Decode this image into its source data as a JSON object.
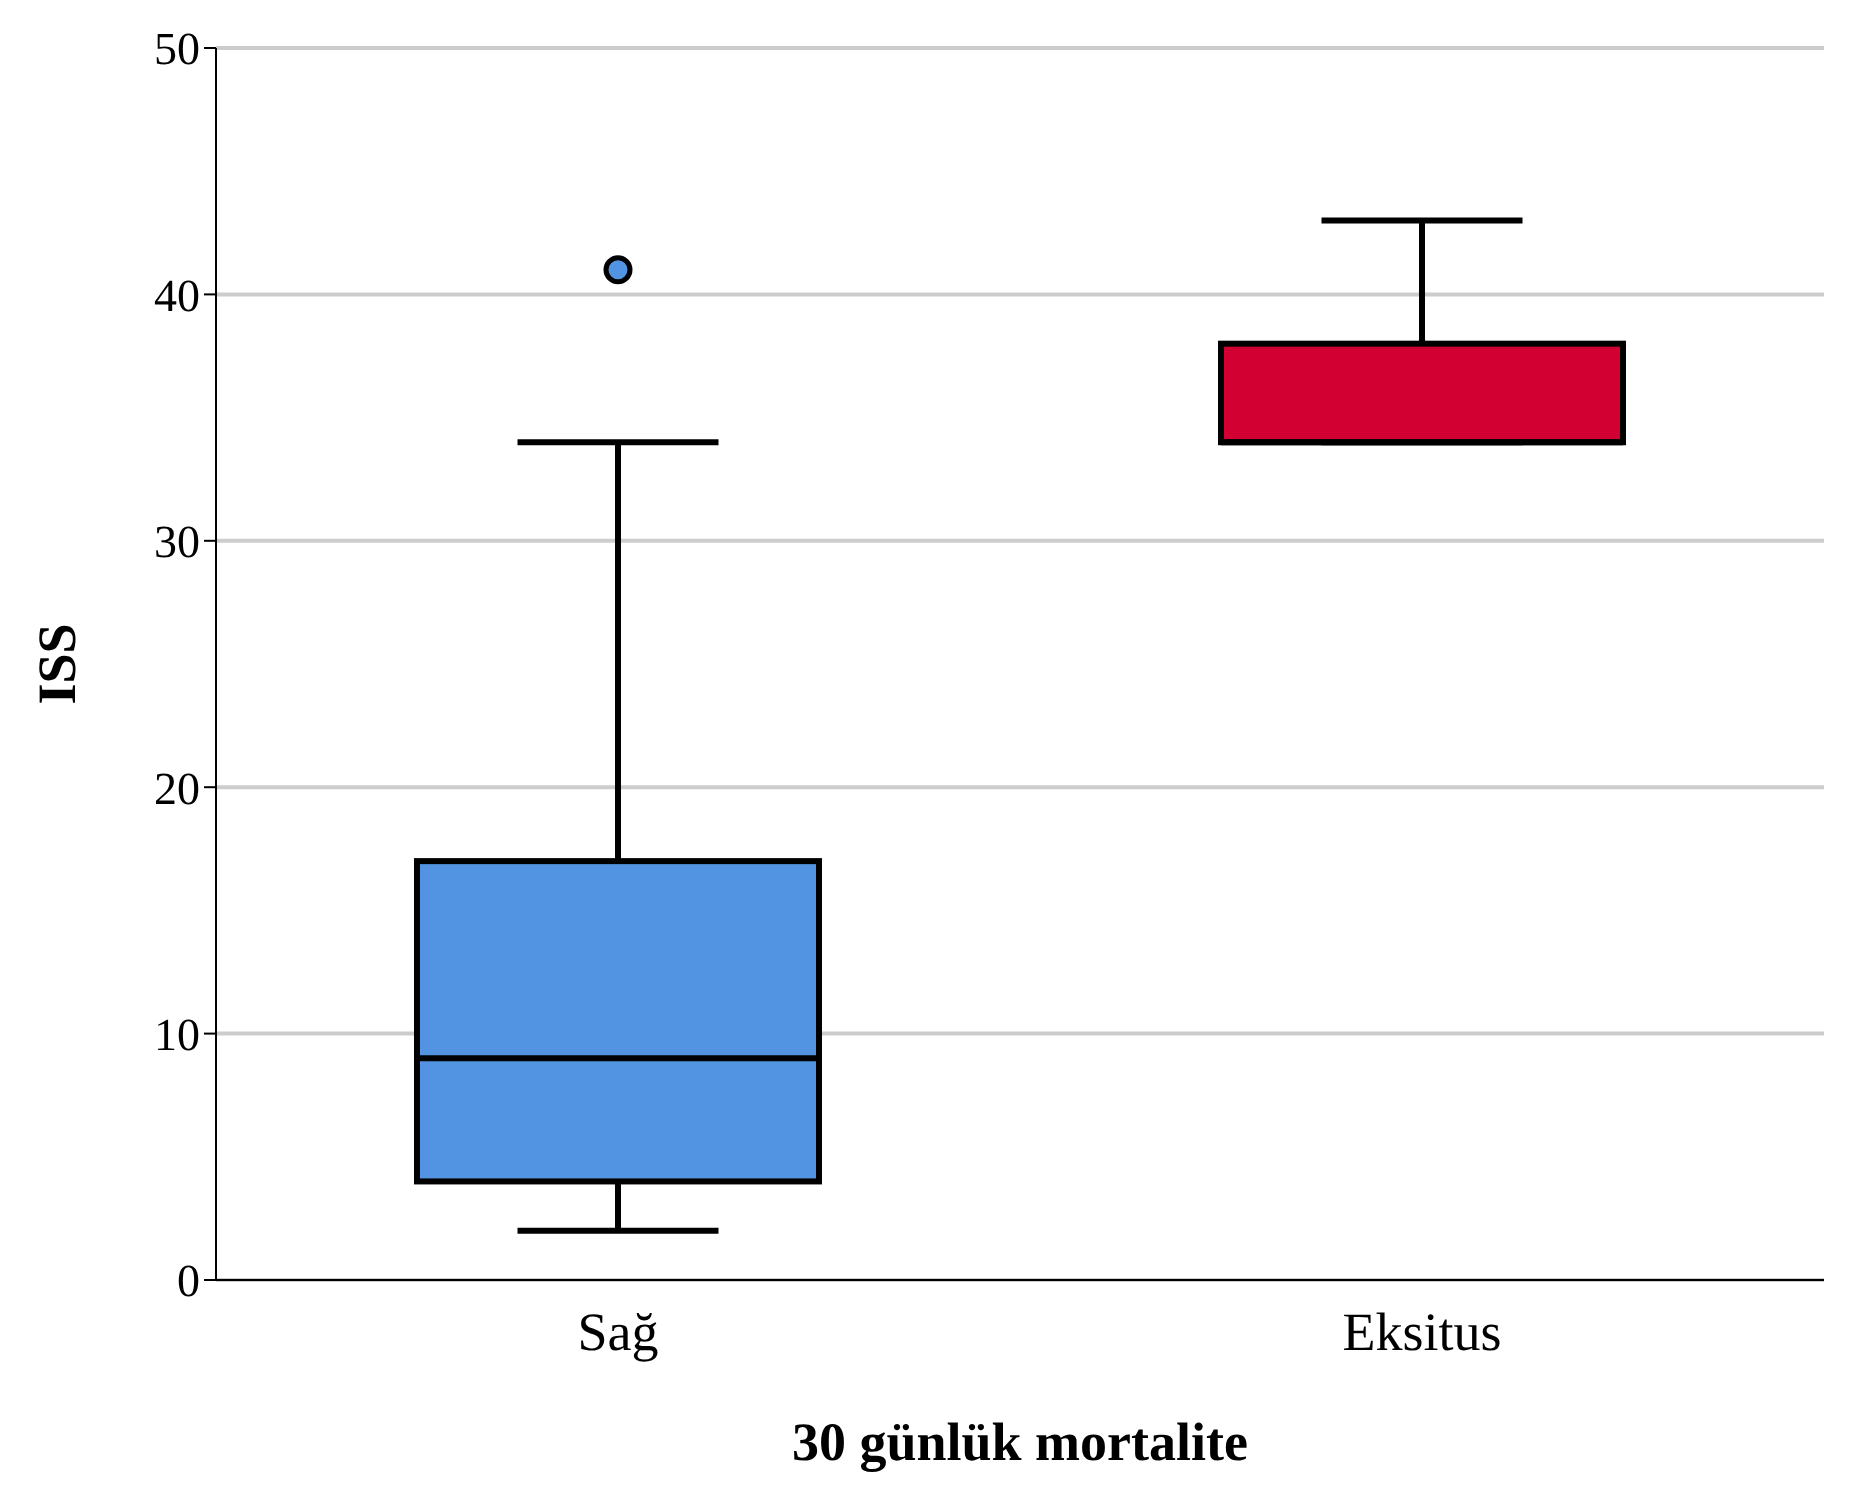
{
  "chart_data": {
    "type": "box",
    "xlabel": "30 günlük mortalite",
    "ylabel": "ISS",
    "categories": [
      "Sağ",
      "Eksitus"
    ],
    "colors": [
      "#5294e2",
      "#d20032"
    ],
    "boxes": [
      {
        "low": 2,
        "q1": 4,
        "median": 9,
        "q3": 17,
        "high": 34,
        "outliers": [
          41
        ]
      },
      {
        "low": 34,
        "q1": 34,
        "median": 34,
        "q3": 38,
        "high": 43
      }
    ],
    "ylim": [
      0,
      50
    ],
    "yticks": [
      0,
      10,
      20,
      30,
      40,
      50
    ],
    "grid": "y"
  }
}
